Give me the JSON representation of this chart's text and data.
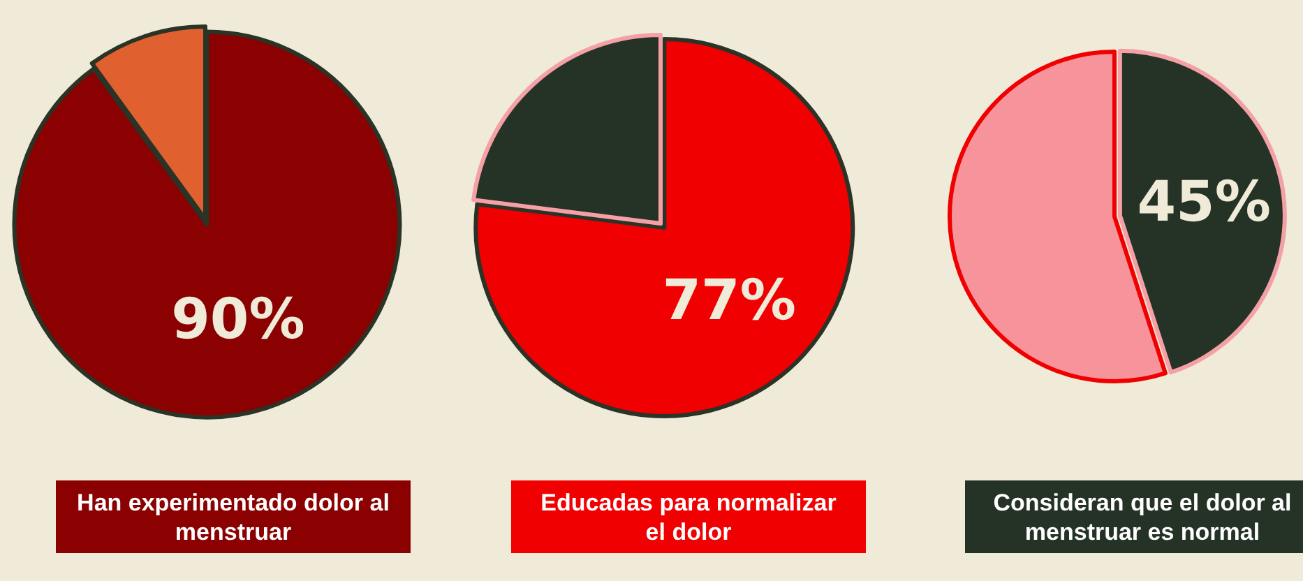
{
  "chart_data": [
    {
      "type": "pie",
      "title": "Han experimentado dolor al menstruar",
      "categories": [
        null,
        null
      ],
      "values": [
        90,
        10
      ],
      "colors": [
        "#8b0000",
        "#e0612f"
      ],
      "value_labels": [
        "90%",
        null
      ]
    },
    {
      "type": "pie",
      "title": "Educadas para normalizar el dolor",
      "categories": [
        null,
        null
      ],
      "values": [
        77,
        23
      ],
      "colors": [
        "#f00000",
        "#243325"
      ],
      "value_labels": [
        "77%",
        null
      ]
    },
    {
      "type": "pie",
      "title": "Consideran que el dolor al menstruar es normal",
      "categories": [
        null,
        null
      ],
      "values": [
        45,
        55
      ],
      "colors": [
        "#243325",
        "#f7939b"
      ],
      "value_labels": [
        "45%",
        null
      ]
    }
  ]
}
